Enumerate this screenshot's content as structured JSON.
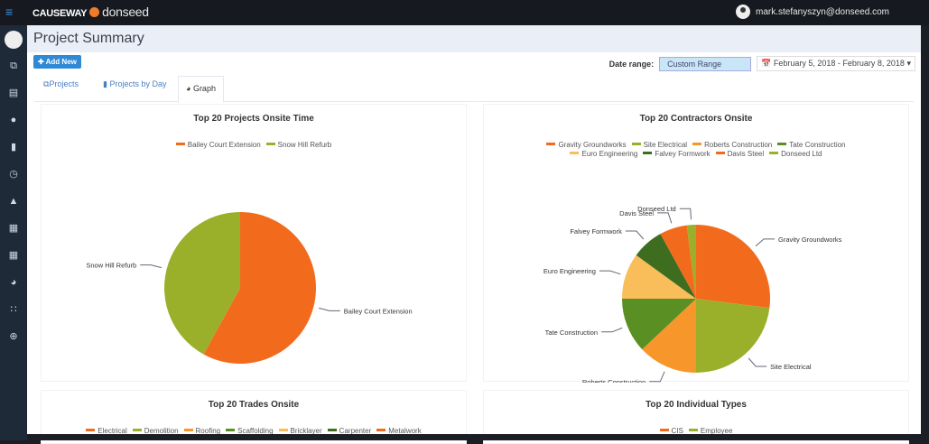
{
  "header": {
    "brand": "CAUSEWAY",
    "product": "donseed",
    "user_email": "mark.stefanyszyn@donseed.com"
  },
  "sidebar": {
    "icons": [
      "user-avatar-icon",
      "projects-icon",
      "chart-icon",
      "person-icon",
      "building-icon",
      "clock-icon",
      "bell-icon",
      "table-icon",
      "table-alt-icon",
      "dashboard-icon",
      "grid-icon",
      "support-icon"
    ]
  },
  "page": {
    "title": "Project Summary",
    "add_new": "Add New",
    "date_range_label": "Date range:",
    "date_range_select": "Custom Range",
    "date_range_value": "February 5, 2018 - February 8, 2018"
  },
  "tabs": [
    {
      "label": "Projects"
    },
    {
      "label": "Projects by Day"
    },
    {
      "label": "Graph",
      "active": true
    }
  ],
  "colors": {
    "orange": "#f26b1d",
    "olive": "#9bb02a",
    "light_orange": "#f7962a",
    "dark_green": "#3f6d1f",
    "peach": "#f9bd5a",
    "green": "#5a8f24"
  },
  "chart_data": [
    {
      "type": "pie",
      "title": "Top 20 Projects Onsite Time",
      "categories": [
        "Bailey Court Extension",
        "Snow Hill Refurb"
      ],
      "values": [
        58,
        42
      ],
      "colors": [
        "#f26b1d",
        "#9bb02a"
      ]
    },
    {
      "type": "pie",
      "title": "Top 20 Contractors Onsite",
      "categories": [
        "Gravity Groundworks",
        "Site Electrical",
        "Roberts Construction",
        "Tate Construction",
        "Euro Engineering",
        "Falvey Formwork",
        "Davis Steel",
        "Donseed Ltd"
      ],
      "values": [
        27,
        23,
        13,
        12,
        10,
        7,
        6,
        2
      ],
      "colors": [
        "#f26b1d",
        "#9bb02a",
        "#f7962a",
        "#5a8f24",
        "#f9bd5a",
        "#3f6d1f",
        "#f26b1d",
        "#9bb02a"
      ]
    },
    {
      "type": "pie",
      "title": "Top 20 Trades Onsite",
      "categories": [
        "Electrical",
        "Demolition",
        "Roofing",
        "Scaffolding",
        "Bricklayer",
        "Carpenter",
        "Metalwork"
      ],
      "colors": [
        "#f26b1d",
        "#9bb02a",
        "#f7962a",
        "#5a8f24",
        "#f9bd5a",
        "#3f6d1f",
        "#f26b1d"
      ]
    },
    {
      "type": "pie",
      "title": "Top 20 Individual Types",
      "categories": [
        "CIS",
        "Employee"
      ],
      "colors": [
        "#f26b1d",
        "#9bb02a"
      ]
    }
  ]
}
